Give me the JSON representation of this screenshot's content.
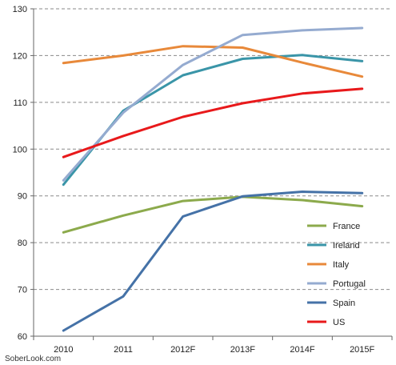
{
  "chart_data": {
    "type": "line",
    "title": "",
    "xlabel": "",
    "ylabel": "",
    "x": [
      "2010",
      "2011",
      "2012F",
      "2013F",
      "2014F",
      "2015F"
    ],
    "yticks": [
      "60",
      "70",
      "80",
      "90",
      "100",
      "110",
      "120",
      "130"
    ],
    "ylim": [
      60,
      130
    ],
    "grid": "horizontal-dashed",
    "legend_position": "bottom-right",
    "series": [
      {
        "name": "France",
        "color": "#8caa4c",
        "values": [
          82.2,
          85.8,
          88.9,
          89.8,
          89.1,
          87.8
        ]
      },
      {
        "name": "Ireland",
        "color": "#3a95a8",
        "values": [
          92.4,
          108.2,
          115.8,
          119.3,
          120.1,
          118.8
        ]
      },
      {
        "name": "Italy",
        "color": "#e8893a",
        "values": [
          118.4,
          120.0,
          122.0,
          121.7,
          118.5,
          115.5
        ]
      },
      {
        "name": "Portugal",
        "color": "#95abd0",
        "values": [
          93.3,
          107.8,
          118.0,
          124.4,
          125.4,
          125.9
        ]
      },
      {
        "name": "Spain",
        "color": "#4572a7",
        "values": [
          61.2,
          68.5,
          85.6,
          89.9,
          90.9,
          90.6
        ]
      },
      {
        "name": "US",
        "color": "#e8191b",
        "values": [
          98.3,
          102.8,
          106.9,
          109.8,
          111.9,
          112.9
        ]
      }
    ]
  },
  "watermark": "SoberLook.com"
}
